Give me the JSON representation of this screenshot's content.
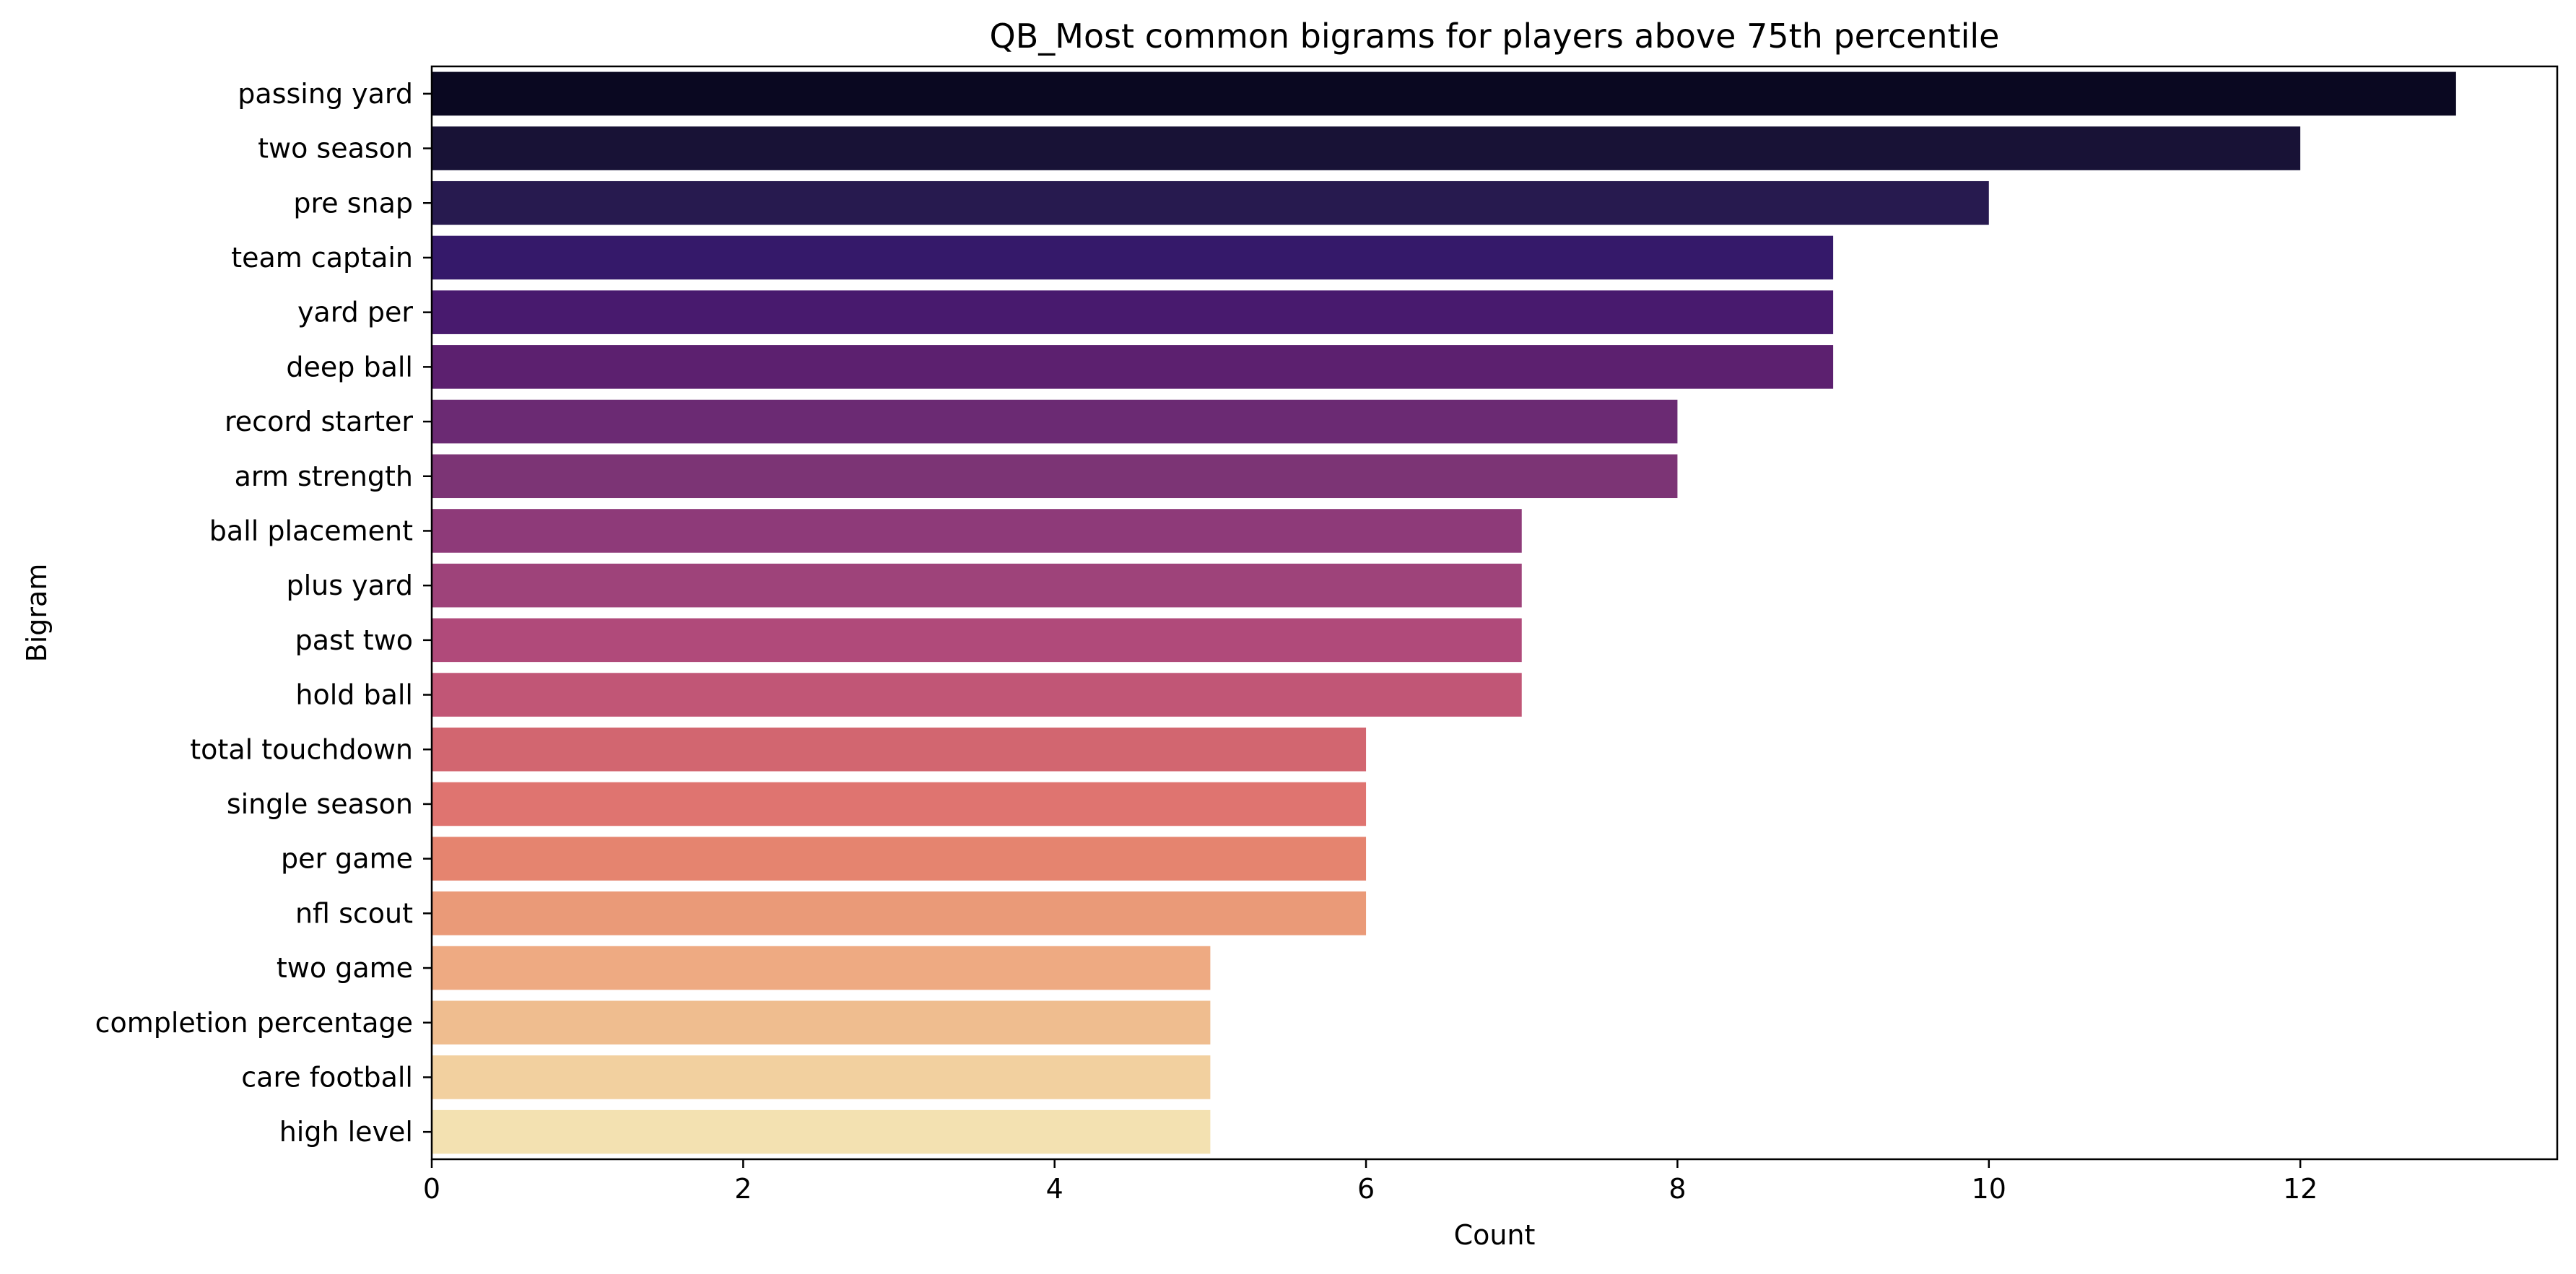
{
  "chart_data": {
    "type": "bar",
    "orientation": "horizontal",
    "title": "QB_Most common bigrams for players above 75th percentile",
    "xlabel": "Count",
    "ylabel": "Bigram",
    "xlim": [
      0,
      13.65
    ],
    "xticks": [
      0,
      2,
      4,
      6,
      8,
      10,
      12
    ],
    "grid": false,
    "colormap": "magma",
    "categories": [
      "passing yard",
      "two season",
      "pre snap",
      "team captain",
      "yard per",
      "deep ball",
      "record starter",
      "arm strength",
      "ball placement",
      "plus yard",
      "past two",
      "hold ball",
      "total touchdown",
      "single season",
      "per game",
      "nfl scout",
      "two game",
      "completion percentage",
      "care football",
      "high level"
    ],
    "values": [
      13,
      12,
      10,
      9,
      9,
      9,
      8,
      8,
      7,
      7,
      7,
      7,
      6,
      6,
      6,
      6,
      5,
      5,
      5,
      5
    ],
    "colors": [
      "#0a0821",
      "#181236",
      "#271a4f",
      "#35196a",
      "#481a6e",
      "#5c206f",
      "#6b2a73",
      "#7c3475",
      "#8e3a79",
      "#9e437a",
      "#b04a7a",
      "#c15676",
      "#d26670",
      "#df7470",
      "#e5846f",
      "#ea9a78",
      "#eeaa82",
      "#efbd8f",
      "#f2d09f",
      "#f3e1b1"
    ]
  }
}
